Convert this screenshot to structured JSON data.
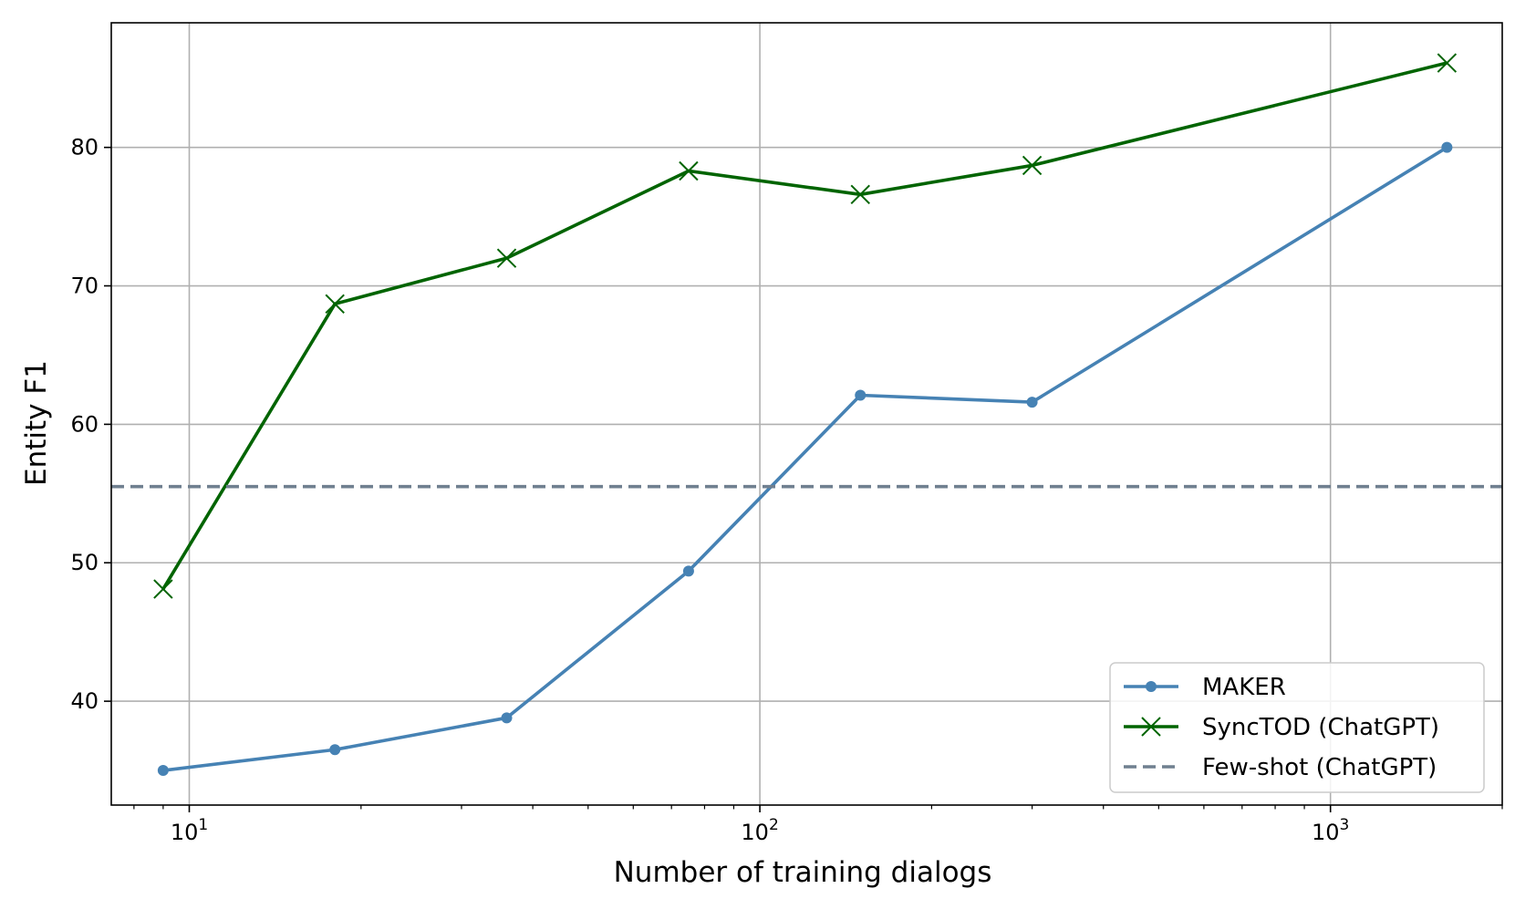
{
  "chart_data": {
    "type": "line",
    "title": "",
    "xlabel": "Number of training dialogs",
    "ylabel": "Entity F1",
    "xscale": "log",
    "xlim": [
      7.3,
      2000
    ],
    "ylim": [
      32.5,
      89
    ],
    "grid": true,
    "legend_placement": "lower-right",
    "x_tick_labels": [
      {
        "value": 10,
        "base": "10",
        "exp": "1"
      },
      {
        "value": 100,
        "base": "10",
        "exp": "2"
      },
      {
        "value": 1000,
        "base": "10",
        "exp": "3"
      }
    ],
    "y_ticks": [
      40,
      50,
      60,
      70,
      80
    ],
    "series": [
      {
        "name": "MAKER",
        "color": "#4682b4",
        "marker": "circle",
        "linestyle": "solid",
        "x": [
          9,
          18,
          36,
          75,
          150,
          300,
          1600
        ],
        "y": [
          35.0,
          36.5,
          38.8,
          49.4,
          62.1,
          61.6,
          80.0
        ]
      },
      {
        "name": "SyncTOD (ChatGPT)",
        "color": "#006400",
        "marker": "x",
        "linestyle": "solid",
        "x": [
          9,
          18,
          36,
          75,
          150,
          300,
          1600
        ],
        "y": [
          48.1,
          68.7,
          72.0,
          78.3,
          76.6,
          78.7,
          86.1
        ]
      },
      {
        "name": "Few-shot (ChatGPT)",
        "color": "#708090",
        "marker": "none",
        "linestyle": "dashed",
        "hline": 55.5
      }
    ]
  }
}
